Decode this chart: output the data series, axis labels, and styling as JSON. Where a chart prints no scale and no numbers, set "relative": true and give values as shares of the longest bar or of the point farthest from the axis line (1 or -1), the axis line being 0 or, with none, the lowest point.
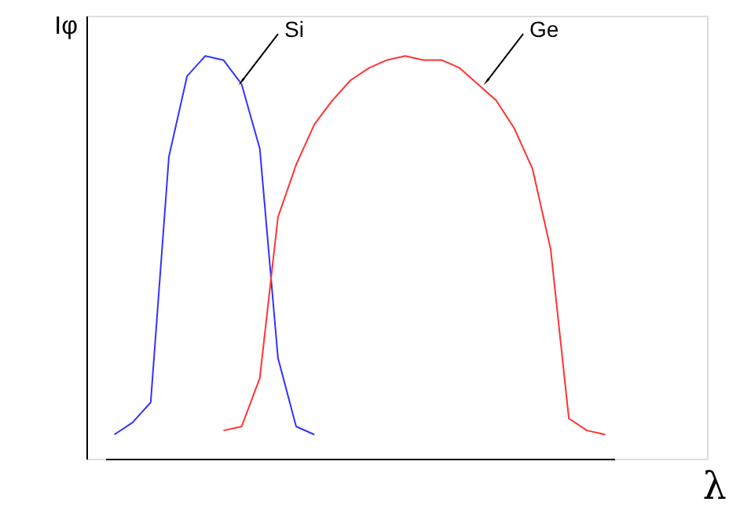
{
  "chart_data": {
    "type": "line",
    "relative": true,
    "xlabel": "λ",
    "ylabel": "Iφ",
    "tick_labels": false,
    "marker": "none",
    "line_style": "solid",
    "categories": [
      null,
      null,
      null,
      null,
      null,
      null,
      null,
      null,
      null,
      null,
      null,
      null,
      null,
      null,
      null,
      null,
      null,
      null,
      null,
      null,
      null,
      null,
      null,
      null,
      null,
      null,
      null,
      null
    ],
    "series": [
      {
        "name": "Si",
        "color": "#3333ff",
        "values": [
          0.06,
          0.09,
          0.14,
          0.75,
          0.95,
          1.0,
          0.99,
          0.93,
          0.77,
          0.25,
          0.08,
          0.06,
          null,
          null,
          null,
          null,
          null,
          null,
          null,
          null,
          null,
          null,
          null,
          null,
          null,
          null,
          null,
          null
        ]
      },
      {
        "name": "Ge",
        "color": "#ff3333",
        "values": [
          null,
          null,
          null,
          null,
          null,
          null,
          0.07,
          0.08,
          0.2,
          0.6,
          0.73,
          0.83,
          0.89,
          0.94,
          0.97,
          0.99,
          1.0,
          0.99,
          0.99,
          0.97,
          0.93,
          0.89,
          0.82,
          0.72,
          0.52,
          0.1,
          0.07,
          0.06
        ]
      }
    ]
  }
}
